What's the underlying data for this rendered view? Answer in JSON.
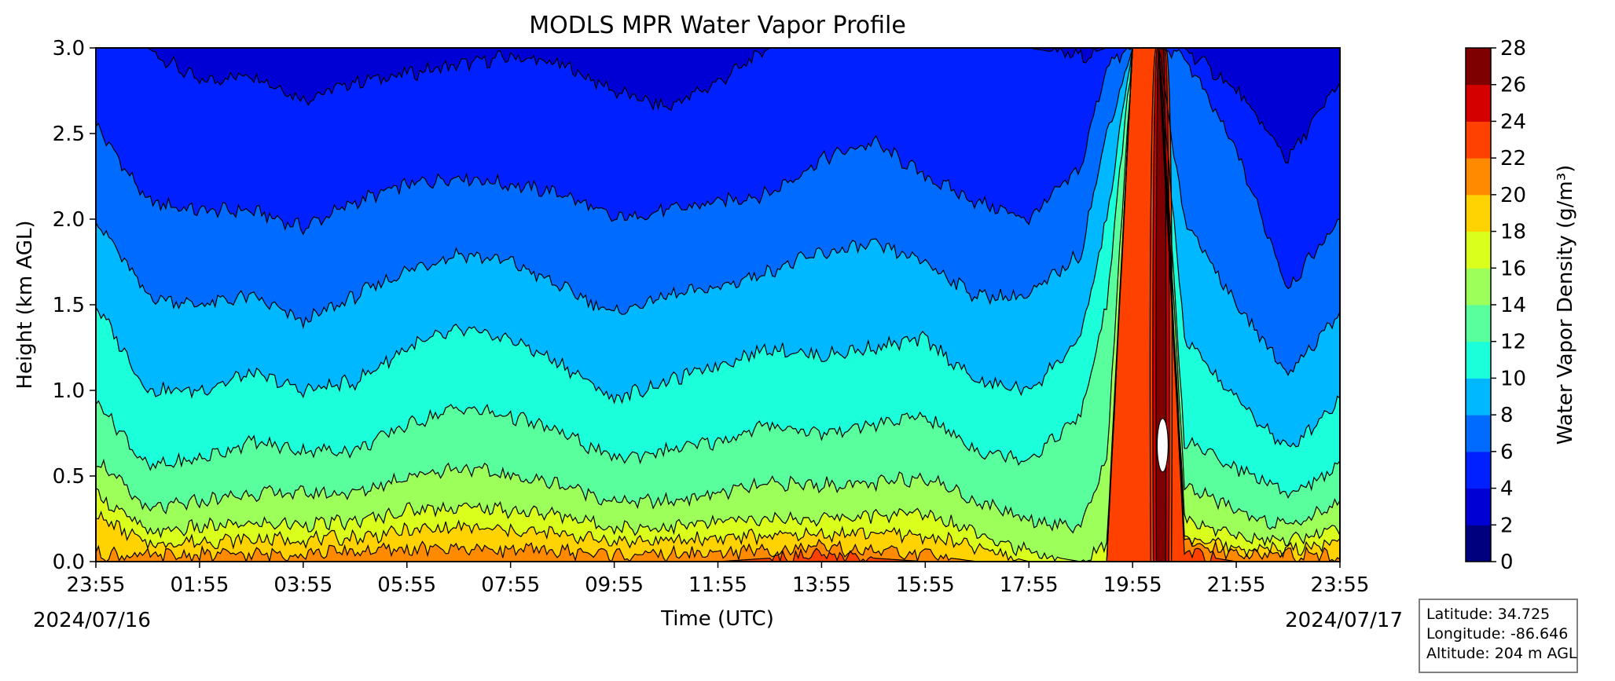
{
  "chart_data": {
    "type": "heatmap",
    "subtype": "filled-contour",
    "title": "MODLS MPR Water Vapor Profile",
    "xlabel": "Time (UTC)",
    "ylabel": "Height (km AGL)",
    "colorbar_label": "Water Vapor Density (g/m³)",
    "start_date": "2024/07/16",
    "end_date": "2024/07/17",
    "x_ticks": [
      "23:55",
      "01:55",
      "03:55",
      "05:55",
      "07:55",
      "09:55",
      "11:55",
      "13:55",
      "15:55",
      "17:55",
      "19:55",
      "21:55",
      "23:55"
    ],
    "x_range_hours": [
      0,
      24
    ],
    "ylim": [
      0.0,
      3.0
    ],
    "y_ticks": [
      "0.0",
      "0.5",
      "1.0",
      "1.5",
      "2.0",
      "2.5",
      "3.0"
    ],
    "contour_levels": [
      0,
      2,
      4,
      6,
      8,
      10,
      12,
      14,
      16,
      18,
      20,
      22,
      24,
      26,
      28
    ],
    "level_colors": [
      "#00007f",
      "#0000d4",
      "#0020ff",
      "#006cff",
      "#00b8ff",
      "#1cffdb",
      "#5aff9d",
      "#9dff5a",
      "#dbff1c",
      "#ffd300",
      "#ff8a00",
      "#ff4100",
      "#d40000",
      "#7f0000"
    ],
    "colormap": "jet",
    "isoline_heights_km": {
      "description": "approximate height of each density isoline at selected times (hours after 23:55 on 2024/07/16)",
      "hours": [
        0,
        1,
        2,
        3,
        4,
        5,
        6,
        7,
        8,
        9,
        10,
        11,
        12,
        13,
        14,
        15,
        16,
        17,
        18,
        19,
        19.5,
        20,
        20.5,
        21,
        22,
        23,
        24
      ],
      "levels": {
        "4": [
          3.0,
          3.0,
          2.8,
          2.85,
          2.7,
          2.8,
          2.85,
          2.9,
          2.95,
          2.9,
          2.75,
          2.65,
          2.8,
          3.0,
          3.0,
          3.0,
          3.0,
          3.0,
          3.0,
          2.95,
          3.0,
          3.0,
          3.0,
          3.0,
          2.75,
          2.35,
          2.8
        ],
        "6": [
          2.55,
          2.1,
          2.05,
          2.05,
          1.95,
          2.1,
          2.2,
          2.25,
          2.2,
          2.15,
          2.0,
          2.05,
          2.1,
          2.15,
          2.35,
          2.45,
          2.25,
          2.1,
          2.0,
          2.3,
          2.9,
          3.0,
          3.0,
          2.95,
          2.4,
          1.6,
          2.0
        ],
        "8": [
          2.0,
          1.55,
          1.5,
          1.55,
          1.4,
          1.55,
          1.7,
          1.8,
          1.75,
          1.6,
          1.45,
          1.55,
          1.6,
          1.7,
          1.8,
          1.85,
          1.75,
          1.55,
          1.55,
          1.8,
          2.5,
          3.0,
          3.0,
          2.0,
          1.5,
          1.1,
          1.45
        ],
        "10": [
          1.5,
          1.0,
          1.0,
          1.1,
          1.0,
          1.05,
          1.25,
          1.35,
          1.3,
          1.15,
          0.95,
          1.05,
          1.15,
          1.25,
          1.2,
          1.25,
          1.3,
          1.05,
          1.0,
          1.3,
          2.0,
          3.0,
          3.0,
          1.3,
          0.95,
          0.65,
          0.95
        ],
        "12": [
          0.95,
          0.55,
          0.6,
          0.7,
          0.65,
          0.65,
          0.8,
          0.9,
          0.85,
          0.75,
          0.6,
          0.65,
          0.7,
          0.8,
          0.75,
          0.8,
          0.85,
          0.65,
          0.6,
          0.85,
          1.5,
          3.0,
          3.0,
          0.7,
          0.55,
          0.4,
          0.55
        ],
        "14": [
          0.6,
          0.3,
          0.35,
          0.4,
          0.4,
          0.4,
          0.5,
          0.55,
          0.5,
          0.45,
          0.35,
          0.35,
          0.4,
          0.45,
          0.45,
          0.45,
          0.5,
          0.35,
          0.25,
          0.2,
          0.6,
          3.0,
          3.0,
          0.45,
          0.3,
          0.2,
          0.35
        ],
        "16": [
          0.4,
          0.17,
          0.2,
          0.22,
          0.22,
          0.23,
          0.3,
          0.32,
          0.3,
          0.27,
          0.2,
          0.2,
          0.23,
          0.25,
          0.25,
          0.27,
          0.28,
          0.18,
          0.05,
          0.0,
          0.1,
          3.0,
          3.0,
          0.25,
          0.15,
          0.12,
          0.2
        ],
        "18": [
          0.27,
          0.1,
          0.12,
          0.13,
          0.13,
          0.14,
          0.18,
          0.2,
          0.18,
          0.16,
          0.12,
          0.12,
          0.14,
          0.15,
          0.16,
          0.17,
          0.15,
          0.08,
          0.0,
          0.0,
          0.0,
          3.0,
          3.0,
          0.15,
          0.08,
          0.07,
          0.12
        ],
        "20": [
          0.05,
          0.03,
          0.04,
          0.04,
          0.05,
          0.06,
          0.07,
          0.08,
          0.07,
          0.06,
          0.04,
          0.04,
          0.05,
          0.07,
          0.08,
          0.06,
          0.04,
          0.0,
          0.0,
          0.0,
          0.0,
          3.0,
          3.0,
          0.12,
          0.05,
          0.04,
          0.03
        ],
        "22": [
          0.0,
          0.0,
          0.0,
          0.0,
          0.0,
          0.0,
          0.0,
          0.0,
          0.0,
          0.0,
          0.0,
          0.0,
          0.0,
          0.02,
          0.03,
          0.02,
          0.0,
          0.0,
          0.0,
          0.0,
          0.0,
          3.0,
          3.0,
          0.05,
          0.0,
          0.0,
          0.0
        ]
      }
    },
    "annotations": [
      "Intense moisture plume near 20:30 UTC reaching 24–28 g/m³ from the surface to 3.0 km"
    ]
  },
  "info": {
    "latitude": "Latitude: 34.725",
    "longitude": "Longitude: -86.646",
    "altitude": "Altitude: 204 m AGL"
  }
}
